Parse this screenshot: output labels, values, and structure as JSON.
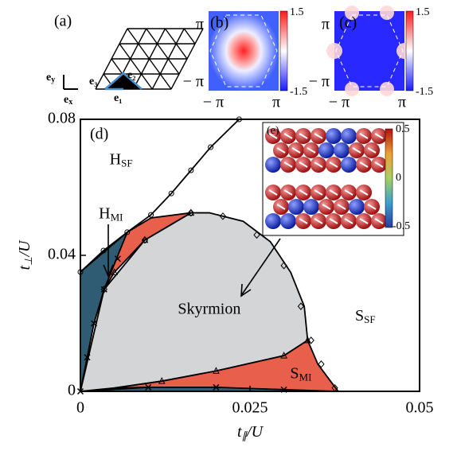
{
  "chart_data": {
    "type": "phase",
    "panel_label": "(d)",
    "x_label": {
      "main": "t",
      "sub": "∥",
      "rest": "/U"
    },
    "y_label": {
      "main": "t",
      "sub": "⊥",
      "rest": "/U"
    },
    "xlim": [
      0,
      0.05
    ],
    "ylim": [
      0,
      0.08
    ],
    "xticks": [
      0,
      0.025,
      0.05
    ],
    "yticks": [
      0,
      0.04,
      0.08
    ],
    "regions": [
      {
        "name": "Skyrmion",
        "color": "#d4d5d7",
        "x": [
          0,
          0.0035,
          0.0095,
          0.0163,
          0.019,
          0.024,
          0.028,
          0.031,
          0.033,
          0.0335,
          0.03,
          0.02,
          0.012,
          0.005
        ],
        "y": [
          0,
          0.03,
          0.0445,
          0.0525,
          0.0525,
          0.05,
          0.044,
          0.035,
          0.025,
          0.015,
          0.0105,
          0.006,
          0.003,
          0.001
        ]
      },
      {
        "name": "H",
        "sub": "MI",
        "color": "#2f5c73",
        "x": [
          0,
          0,
          0.0069,
          0.0081,
          0.0055,
          0.0035,
          0.002,
          0.001
        ],
        "y": [
          0,
          0.0351,
          0.0468,
          0.0485,
          0.039,
          0.03,
          0.02,
          0.01
        ]
      },
      {
        "color": "#e8604c",
        "x": [
          0.0069,
          0.0104,
          0.0163,
          0.0095,
          0.005,
          0.0035
        ],
        "y": [
          0.0468,
          0.051,
          0.0525,
          0.0445,
          0.035,
          0.03
        ]
      },
      {
        "name": "S",
        "sub": "MI",
        "color": "#e8604c",
        "x": [
          0.005,
          0.012,
          0.02,
          0.03,
          0.0335,
          0.035,
          0.0365,
          0.038,
          0.03,
          0.02,
          0.01
        ],
        "y": [
          0.001,
          0.003,
          0.006,
          0.0105,
          0.015,
          0.008,
          0.004,
          0,
          0.0005,
          0.001,
          0.0012
        ]
      },
      {
        "color": "#2f5c73",
        "x": [
          0,
          0.01,
          0.02,
          0.03,
          0.033
        ],
        "y": [
          0,
          0.0012,
          0.0012,
          0.0005,
          0
        ]
      }
    ],
    "boundaries": [
      {
        "marker": "circle",
        "x": [
          0,
          0.0034,
          0.0069,
          0.0104,
          0.0134,
          0.0163,
          0.0192,
          0.0234
        ],
        "y": [
          0.0351,
          0.0414,
          0.0468,
          0.0519,
          0.0582,
          0.065,
          0.0718,
          0.08
        ]
      },
      {
        "marker": "diamond",
        "x": [
          0.0035,
          0.0095,
          0.0163,
          0.021,
          0.026,
          0.03,
          0.0325,
          0.034,
          0.0355,
          0.0375
        ],
        "y": [
          0.03,
          0.0445,
          0.0525,
          0.0515,
          0.046,
          0.037,
          0.025,
          0.015,
          0.008,
          0.001
        ]
      },
      {
        "marker": "triangle",
        "x": [
          0.0095,
          0.0163,
          0.005,
          0.012,
          0.02,
          0.03,
          0.0335
        ],
        "y": [
          0.0445,
          0.0525,
          0.035,
          0.003,
          0.006,
          0.0105,
          0.015
        ]
      },
      {
        "marker": "cross",
        "x": [
          0,
          0.001,
          0.002,
          0.0035,
          0.0055,
          0.01,
          0.02,
          0.03
        ],
        "y": [
          0,
          0.01,
          0.02,
          0.03,
          0.039,
          0.0012,
          0.0012,
          0.0005
        ]
      }
    ],
    "labels": [
      {
        "main": "H",
        "sub": "SF",
        "x": 0.006,
        "y": 0.068
      },
      {
        "main": "S",
        "sub": "SF",
        "x": 0.042,
        "y": 0.022
      },
      {
        "main": "Skyrmion",
        "x": 0.019,
        "y": 0.024
      },
      {
        "main": "H",
        "sub": "MI",
        "x": 0.0045,
        "y": 0.052
      },
      {
        "main": "S",
        "sub": "MI",
        "x": 0.0325,
        "y": 0.005
      }
    ]
  },
  "insets": {
    "a": {
      "label": "(a)",
      "ey": "e",
      "ey_sub": "y",
      "ex": "e",
      "ex_sub": "x",
      "e1": "e₁",
      "e2": "e₂",
      "e3": "e₃"
    },
    "b": {
      "label": "(b)",
      "cb_max": "1.5",
      "cb_min": "-1.5",
      "y_top": "π",
      "y_bot": "− π",
      "x_left": "− π",
      "x_right": "π"
    },
    "c": {
      "label": "(c)",
      "cb_max": "1.5",
      "cb_min": "-1.5",
      "y_top": "π",
      "y_bot": "− π",
      "x_left": "− π",
      "x_right": "π"
    },
    "e": {
      "label": "(e)",
      "cb_max": "0.5",
      "cb_mid": "0",
      "cb_min": "-0.5"
    }
  }
}
